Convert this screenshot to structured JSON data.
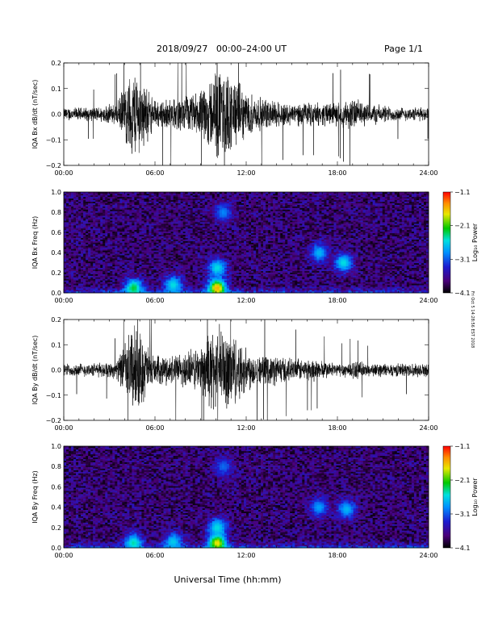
{
  "header": {
    "date_range": "2018/09/27   00:00–24:00 UT",
    "page": "Page 1/1"
  },
  "side_note": "Fri Oct 5 14:28:56 EST 2018",
  "xlabel": "Universal Time (hh:mm)",
  "colors": {
    "trace": "#000000",
    "colormap": [
      "#000000",
      "#4a007a",
      "#1c1cd0",
      "#0090ff",
      "#00e0e0",
      "#00c800",
      "#e8e800",
      "#ff8c00",
      "#ff0000"
    ]
  },
  "chart_data": [
    {
      "type": "line",
      "name": "bx-waveform",
      "ylabel": "IQA Bx dB/dt (nT/sec)",
      "ylim": [
        -0.2,
        0.2
      ],
      "yticks": [
        "0.2",
        "0.1",
        "0.0",
        "−0.1",
        "−0.2"
      ],
      "xticks": [
        "00:00",
        "06:00",
        "12:00",
        "18:00",
        "24:00"
      ],
      "xlim_hours": [
        0,
        24
      ],
      "amplitude_envelope": {
        "hours": [
          0,
          2,
          3.5,
          4.5,
          4.8,
          5.2,
          6,
          7.5,
          9,
          10,
          10.6,
          11.2,
          12,
          13,
          14,
          15,
          16.5,
          18,
          19,
          20,
          22,
          24
        ],
        "values": [
          0.03,
          0.03,
          0.05,
          0.2,
          0.2,
          0.15,
          0.06,
          0.07,
          0.1,
          0.2,
          0.2,
          0.16,
          0.1,
          0.07,
          0.06,
          0.05,
          0.05,
          0.05,
          0.07,
          0.05,
          0.03,
          0.03
        ]
      }
    },
    {
      "type": "heatmap",
      "name": "bx-spectrogram",
      "ylabel": "IQA Bx Freq (Hz)",
      "ylim": [
        0,
        1.0
      ],
      "yticks": [
        "1.0",
        "0.8",
        "0.6",
        "0.4",
        "0.2",
        "0.0"
      ],
      "xticks": [
        "00:00",
        "06:00",
        "12:00",
        "18:00",
        "24:00"
      ],
      "colorbar": {
        "label": "Log₁₀ Power",
        "ticks": [
          "−1.1",
          "−2.1",
          "−3.1",
          "−4.1"
        ],
        "range": [
          -4.1,
          -1.1
        ]
      },
      "features": [
        {
          "hour": 10.1,
          "freq": 0.05,
          "power": -1.6
        },
        {
          "hour": 10.1,
          "freq": 0.25,
          "power": -2.6
        },
        {
          "hour": 10.5,
          "freq": 0.8,
          "power": -3.0
        },
        {
          "hour": 16.8,
          "freq": 0.4,
          "power": -2.8
        },
        {
          "hour": 18.4,
          "freq": 0.3,
          "power": -2.6
        },
        {
          "hour": 4.6,
          "freq": 0.05,
          "power": -2.3
        },
        {
          "hour": 7.2,
          "freq": 0.08,
          "power": -2.6
        }
      ]
    },
    {
      "type": "line",
      "name": "by-waveform",
      "ylabel": "IQA By dB/dt (nT/sec)",
      "ylim": [
        -0.2,
        0.2
      ],
      "yticks": [
        "0.2",
        "0.1",
        "0.0",
        "−0.1",
        "−0.2"
      ],
      "xticks": [
        "00:00",
        "06:00",
        "12:00",
        "18:00",
        "24:00"
      ],
      "xlim_hours": [
        0,
        24
      ],
      "amplitude_envelope": {
        "hours": [
          0,
          2,
          3.5,
          4.5,
          4.8,
          5.2,
          6,
          7.5,
          9,
          10,
          10.6,
          11.2,
          12,
          13,
          14,
          15,
          16.5,
          18,
          19,
          20,
          22,
          24
        ],
        "values": [
          0.03,
          0.03,
          0.04,
          0.2,
          0.2,
          0.15,
          0.06,
          0.07,
          0.11,
          0.2,
          0.2,
          0.17,
          0.1,
          0.06,
          0.07,
          0.05,
          0.05,
          0.03,
          0.04,
          0.03,
          0.03,
          0.03
        ]
      }
    },
    {
      "type": "heatmap",
      "name": "by-spectrogram",
      "ylabel": "IQA By Freq (Hz)",
      "ylim": [
        0,
        1.0
      ],
      "yticks": [
        "1.0",
        "0.8",
        "0.6",
        "0.4",
        "0.2",
        "0.0"
      ],
      "xticks": [
        "00:00",
        "06:00",
        "12:00",
        "18:00",
        "24:00"
      ],
      "colorbar": {
        "label": "Log₁₀ Power",
        "ticks": [
          "−1.1",
          "−2.1",
          "−3.1",
          "−4.1"
        ],
        "range": [
          -4.1,
          -1.1
        ]
      },
      "features": [
        {
          "hour": 10.1,
          "freq": 0.05,
          "power": -1.8
        },
        {
          "hour": 10.1,
          "freq": 0.2,
          "power": -2.6
        },
        {
          "hour": 10.5,
          "freq": 0.8,
          "power": -3.1
        },
        {
          "hour": 16.8,
          "freq": 0.4,
          "power": -2.9
        },
        {
          "hour": 18.6,
          "freq": 0.38,
          "power": -2.8
        },
        {
          "hour": 4.6,
          "freq": 0.05,
          "power": -2.5
        },
        {
          "hour": 7.2,
          "freq": 0.06,
          "power": -2.7
        }
      ]
    }
  ]
}
